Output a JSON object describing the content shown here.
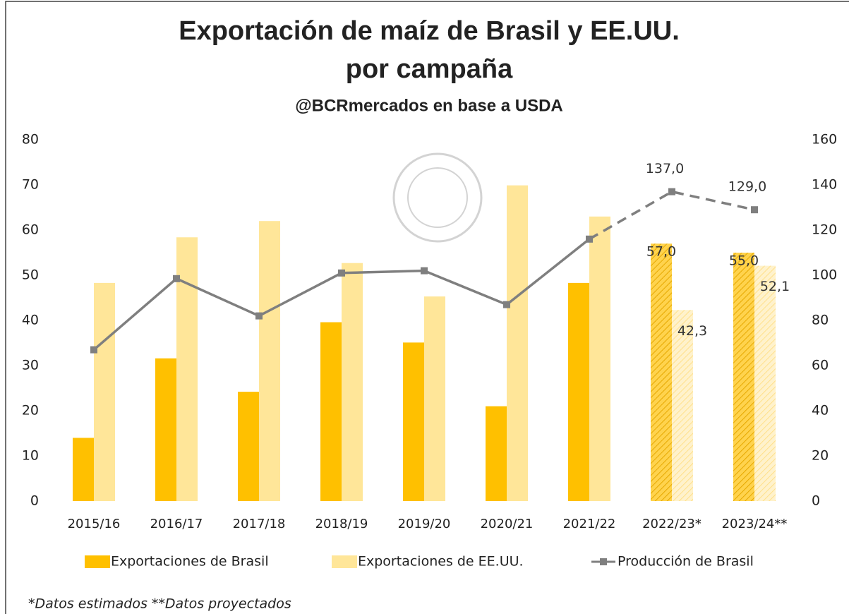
{
  "chart_data": {
    "type": "bar_line",
    "title": "Exportación de maíz  de Brasil y EE.UU.",
    "title_line2": "por campaña",
    "subtitle": "@BCRmercados en base a USDA",
    "footnote": "*Datos estimados **Datos proyectados",
    "categories": [
      "2015/16",
      "2016/17",
      "2017/18",
      "2018/19",
      "2019/20",
      "2020/21",
      "2021/22",
      "2022/23*",
      "2023/24**"
    ],
    "estimated": [
      false,
      false,
      false,
      false,
      false,
      false,
      false,
      true,
      true
    ],
    "series": [
      {
        "name": "Exportaciones de Brasil",
        "type": "bar",
        "color": "#ffc000",
        "values": [
          14.0,
          31.6,
          24.2,
          39.6,
          35.1,
          21.0,
          48.3,
          57.0,
          55.0
        ],
        "value_labels": [
          null,
          null,
          null,
          null,
          null,
          null,
          null,
          "57,0",
          "55,0"
        ]
      },
      {
        "name": "Exportaciones de EE.UU.",
        "type": "bar",
        "color": "#ffe699",
        "values": [
          48.3,
          58.4,
          62.0,
          52.7,
          45.3,
          69.9,
          63.0,
          42.3,
          52.1
        ],
        "value_labels": [
          null,
          null,
          null,
          null,
          null,
          null,
          null,
          "42,3",
          "52,1"
        ]
      },
      {
        "name": "Producción de Brasil",
        "type": "line",
        "axis": "y2",
        "color": "#7f7f7f",
        "values": [
          67,
          98.5,
          82,
          101,
          102,
          87,
          116,
          137,
          129
        ],
        "value_labels": [
          null,
          null,
          null,
          null,
          null,
          null,
          null,
          "137,0",
          "129,0"
        ]
      }
    ],
    "ylim": [
      0,
      80
    ],
    "yticks": [
      0,
      10,
      20,
      30,
      40,
      50,
      60,
      70,
      80
    ],
    "y2lim": [
      0,
      160
    ],
    "y2ticks": [
      0,
      20,
      40,
      60,
      80,
      100,
      120,
      140,
      160
    ],
    "grid": false
  }
}
